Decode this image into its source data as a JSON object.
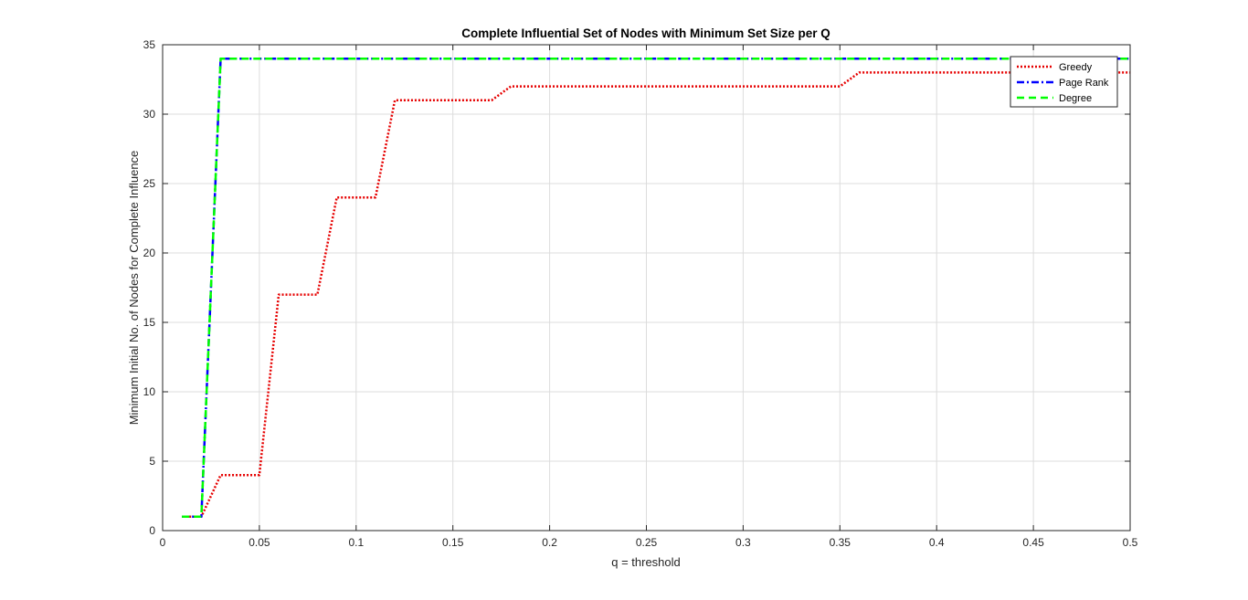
{
  "chart_data": {
    "type": "line",
    "title": "Complete Influential Set of Nodes with Minimum Set Size per Q",
    "xlabel": "q = threshold",
    "ylabel": "Minimum Initial No. of Nodes for Complete Influence",
    "xlim": [
      0,
      0.5
    ],
    "ylim": [
      0,
      35
    ],
    "xticks": [
      0,
      0.05,
      0.1,
      0.15,
      0.2,
      0.25,
      0.3,
      0.35,
      0.4,
      0.45,
      0.5
    ],
    "xtick_labels": [
      "0",
      "0.05",
      "0.1",
      "0.15",
      "0.2",
      "0.25",
      "0.3",
      "0.35",
      "0.4",
      "0.45",
      "0.5"
    ],
    "yticks": [
      0,
      5,
      10,
      15,
      20,
      25,
      30,
      35
    ],
    "ytick_labels": [
      "0",
      "5",
      "10",
      "15",
      "20",
      "25",
      "30",
      "35"
    ],
    "grid": true,
    "legend_position": "top-right",
    "x": [
      0.01,
      0.02,
      0.03,
      0.04,
      0.05,
      0.06,
      0.07,
      0.08,
      0.09,
      0.1,
      0.11,
      0.12,
      0.13,
      0.14,
      0.15,
      0.16,
      0.17,
      0.18,
      0.19,
      0.2,
      0.21,
      0.22,
      0.23,
      0.24,
      0.25,
      0.26,
      0.27,
      0.28,
      0.29,
      0.3,
      0.31,
      0.32,
      0.33,
      0.34,
      0.35,
      0.36,
      0.37,
      0.38,
      0.39,
      0.4,
      0.41,
      0.42,
      0.43,
      0.44,
      0.45,
      0.46,
      0.47,
      0.48,
      0.49,
      0.5
    ],
    "series": [
      {
        "name": "Greedy",
        "color": "#e60000",
        "style": "dotted",
        "values": [
          1,
          1,
          4,
          4,
          4,
          17,
          17,
          17,
          24,
          24,
          24,
          31,
          31,
          31,
          31,
          31,
          31,
          32,
          32,
          32,
          32,
          32,
          32,
          32,
          32,
          32,
          32,
          32,
          32,
          32,
          32,
          32,
          32,
          32,
          32,
          33,
          33,
          33,
          33,
          33,
          33,
          33,
          33,
          33,
          33,
          33,
          33,
          33,
          33,
          33
        ]
      },
      {
        "name": "Page Rank",
        "color": "#0000ff",
        "style": "dashdot",
        "values": [
          1,
          1,
          34,
          34,
          34,
          34,
          34,
          34,
          34,
          34,
          34,
          34,
          34,
          34,
          34,
          34,
          34,
          34,
          34,
          34,
          34,
          34,
          34,
          34,
          34,
          34,
          34,
          34,
          34,
          34,
          34,
          34,
          34,
          34,
          34,
          34,
          34,
          34,
          34,
          34,
          34,
          34,
          34,
          34,
          34,
          34,
          34,
          34,
          34,
          34
        ]
      },
      {
        "name": "Degree",
        "color": "#00ff00",
        "style": "dashed",
        "values": [
          1,
          1,
          34,
          34,
          34,
          34,
          34,
          34,
          34,
          34,
          34,
          34,
          34,
          34,
          34,
          34,
          34,
          34,
          34,
          34,
          34,
          34,
          34,
          34,
          34,
          34,
          34,
          34,
          34,
          34,
          34,
          34,
          34,
          34,
          34,
          34,
          34,
          34,
          34,
          34,
          34,
          34,
          34,
          34,
          34,
          34,
          34,
          34,
          34,
          34
        ]
      }
    ]
  }
}
